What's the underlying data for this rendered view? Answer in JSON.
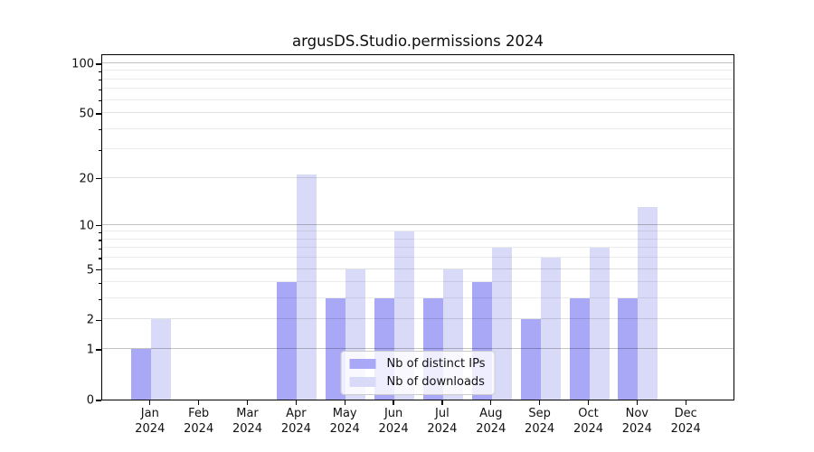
{
  "chart_data": {
    "type": "bar",
    "title": "argusDS.Studio.permissions 2024",
    "categories": [
      "Jan",
      "Feb",
      "Mar",
      "Apr",
      "May",
      "Jun",
      "Jul",
      "Aug",
      "Sep",
      "Oct",
      "Nov",
      "Dec"
    ],
    "x_tick_year": "2024",
    "series": [
      {
        "name": "Nb of distinct IPs",
        "color": "#a8a8f7",
        "values": [
          1,
          0,
          0,
          4,
          3,
          3,
          3,
          4,
          2,
          3,
          3,
          0
        ]
      },
      {
        "name": "Nb of downloads",
        "color": "#d9daf8",
        "values": [
          2,
          0,
          0,
          21,
          5,
          9,
          5,
          7,
          6,
          7,
          13,
          0
        ]
      }
    ],
    "y_axis": {
      "scale": "log10(1+x)",
      "tick_labels": [
        "0",
        "1",
        "2",
        "5",
        "10",
        "20",
        "50",
        "100"
      ],
      "tick_values": [
        0,
        1,
        2,
        5,
        10,
        20,
        50,
        100
      ],
      "major_gridlines": [
        1,
        10,
        100
      ],
      "sub_gridlines": [
        2,
        5,
        20,
        50
      ],
      "minor_gridlines": [
        3,
        4,
        6,
        7,
        8,
        9,
        30,
        40,
        60,
        70,
        80,
        90
      ],
      "ylim": [
        0,
        115
      ]
    },
    "legend": {
      "position": "lower center"
    },
    "grid": true
  }
}
